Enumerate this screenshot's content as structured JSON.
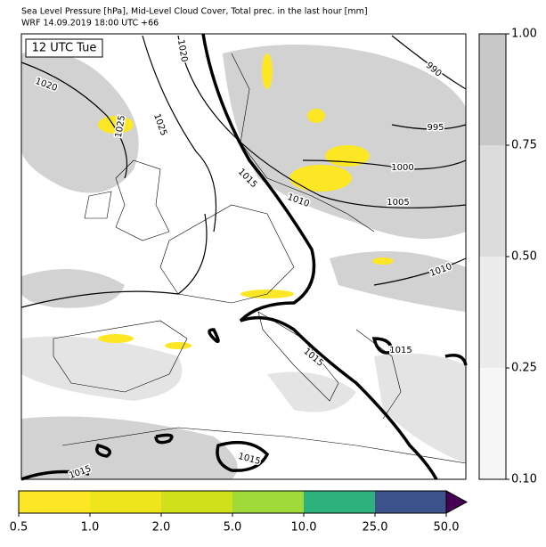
{
  "header": {
    "title": "Sea Level Pressure [hPa], Mid-Level Cloud Cover, Total prec. in the last hour [mm]",
    "subtitle": "WRF 14.09.2019 18:00 UTC +66"
  },
  "map": {
    "time_label": "12 UTC Tue",
    "isobar_labels": [
      "1020",
      "1020",
      "1025",
      "1025",
      "990",
      "995",
      "1000",
      "1005",
      "1010",
      "1015",
      "1010",
      "1015",
      "1015",
      "1015",
      "1015"
    ]
  },
  "cloud_colorbar": {
    "ticks": [
      "1.00",
      "0.75",
      "0.50",
      "0.25",
      "0.10"
    ],
    "colors": [
      "#c8c8c8",
      "#dcdcdc",
      "#ececec",
      "#f7f7f7"
    ]
  },
  "precip_colorbar": {
    "ticks": [
      "0.5",
      "1.0",
      "2.0",
      "5.0",
      "10.0",
      "25.0",
      "50.0"
    ],
    "colors": [
      "#fde725",
      "#efe51c",
      "#d0e11c",
      "#a0da39",
      "#2db27d",
      "#3b528b"
    ],
    "extend_color": "#440154"
  }
}
